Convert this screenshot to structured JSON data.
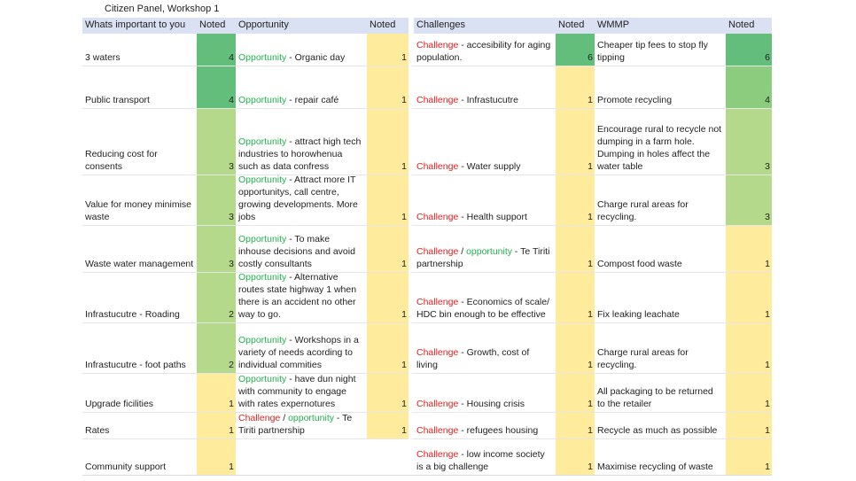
{
  "title": "Citizen Panel, Workshop 1",
  "headers": {
    "important": "Whats important to you",
    "noted1": "Noted",
    "opportunity": "Opportunity",
    "noted2": "Noted",
    "challenges": "Challenges",
    "noted3": "Noted",
    "wmmp": "WMMP",
    "noted4": "Noted"
  },
  "colors": {
    "green_dark": "#63be7b",
    "green_mid": "#8ccc7f",
    "green_light": "#b5d98a",
    "yellow": "#ffeb9c",
    "opportunity_text": "#22b14c",
    "challenge_text": "#e02020"
  },
  "rows": [
    {
      "important": "3 waters",
      "n1": "4",
      "op_tag": "Opportunity",
      "op_text": " - Organic day",
      "n2": "1",
      "ch_tag": "Challenge",
      "ch_text": " - accesibility for aging population.",
      "n3": "6",
      "wm": "Cheaper tip fees to stop fly tipping",
      "n4": "6"
    },
    {
      "important": "Public transport",
      "n1": "4",
      "op_tag": "Opportunity",
      "op_text": " - repair café",
      "n2": "1",
      "ch_tag": "Challenge",
      "ch_text": " - Infrastucutre",
      "n3": "1",
      "wm": "Promote recycling",
      "n4": "4"
    },
    {
      "important": "Reducing cost for consents",
      "n1": "3",
      "op_tag": "Opportunity",
      "op_text": " - attract high tech industries to horowhenua such as data confress",
      "n2": "1",
      "ch_tag": "Challenge",
      "ch_text": " - Water supply",
      "n3": "1",
      "wm": "Encourage rural to recycle not dumping in a farm hole. Dumping in holes affect the water table",
      "n4": "3"
    },
    {
      "important": "Value for money minimise waste",
      "n1": "3",
      "op_tag": "Opportunity",
      "op_text": " - Attract more IT opportunitys, call centre, growing developments. More jobs",
      "n2": "1",
      "ch_tag": "Challenge",
      "ch_text": " - Health support",
      "n3": "1",
      "wm": "Charge rural areas for recycling.",
      "n4": "3"
    },
    {
      "important": "Waste water management",
      "n1": "3",
      "op_tag": "Opportunity",
      "op_text": " - To make inhouse decisions and avoid costly consultants",
      "n2": "1",
      "ch_tag": "Challenge",
      "ch_slash": " / ",
      "ch_tag2": "opportunity",
      "ch_text": " - Te Tiriti partnership",
      "n3": "1",
      "wm": "Compost food waste",
      "n4": "1"
    },
    {
      "important": "Infrastucutre - Roading",
      "n1": "2",
      "op_tag": "Opportunity",
      "op_text": " - Alternative routes state highway 1 when there is an accident no other way to go.",
      "n2": "1",
      "ch_tag": "Challenge",
      "ch_text": " - Economics of scale/ HDC bin enough to be effective",
      "n3": "1",
      "wm": "Fix leaking leachate",
      "n4": "1"
    },
    {
      "important": "Infrastucutre - foot paths",
      "n1": "2",
      "op_tag": "Opportunity",
      "op_text": " - Workshops in a variety of needs acording to individual commities",
      "n2": "1",
      "ch_tag": "Challenge",
      "ch_text": " - Growth, cost of living",
      "n3": "1",
      "wm": "Charge rural areas for recycling.",
      "n4": "1"
    },
    {
      "important": "Upgrade ficilities",
      "n1": "1",
      "op_tag": "Opportunity",
      "op_text": " - have dun night with community to engage with rates expernotures",
      "n2": "1",
      "ch_tag": "Challenge",
      "ch_text": " - Housing crisis",
      "n3": "1",
      "wm": "All packaging to be returned to the retailer",
      "n4": "1"
    },
    {
      "important": "Rates",
      "n1": "1",
      "op_tag": "Challenge",
      "op_slash": " / ",
      "op_tag2": "opportunity",
      "op_text": " - Te Tiriti partnership",
      "n2": "1",
      "ch_tag": "Challenge",
      "ch_text": " - refugees housing",
      "n3": "1",
      "wm": "Recycle as much as possible",
      "n4": "1"
    },
    {
      "important": "Community support",
      "n1": "1",
      "ch_tag": "Challenge",
      "ch_text": " - low income society is a big challenge",
      "n3": "1",
      "wm": "Maximise recycling of waste",
      "n4": "1"
    }
  ]
}
